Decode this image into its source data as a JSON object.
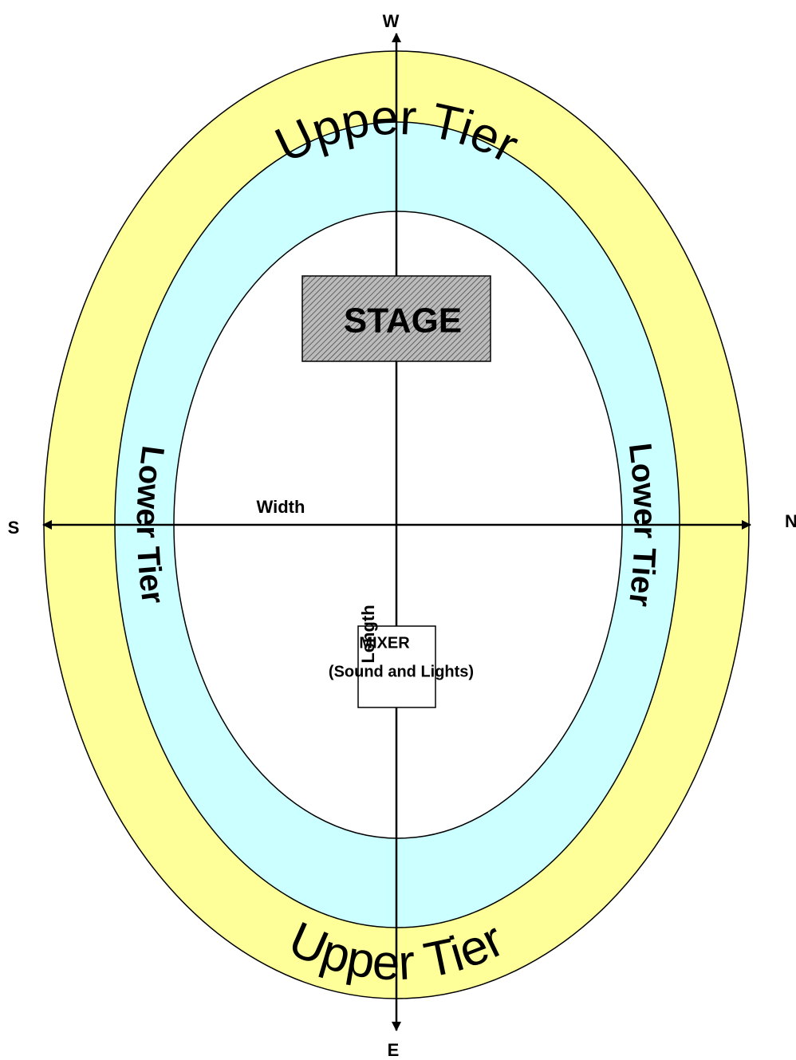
{
  "compass": {
    "top": "W",
    "bottom": "E",
    "left": "S",
    "right": "N"
  },
  "zones": {
    "upper_tier_top": "Upper Tier",
    "upper_tier_bottom": "Upper Tier",
    "lower_tier_left": "Lower Tier",
    "lower_tier_right": "Lower Tier"
  },
  "stage": "STAGE",
  "mixer": {
    "title": "MIXER",
    "subtitle": "(Sound and Lights)"
  },
  "axes": {
    "width": "Width",
    "length": "Length"
  }
}
